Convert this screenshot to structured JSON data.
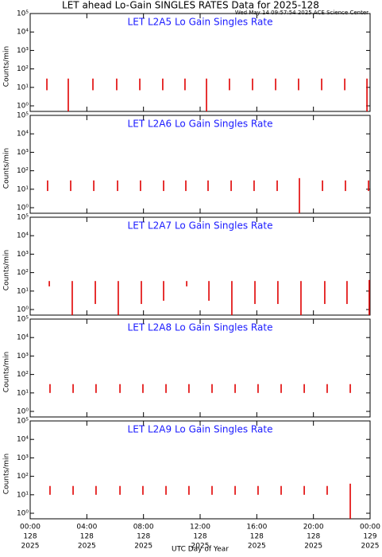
{
  "title": "LET ahead Lo-Gain SINGLES RATES Data for 2025-128",
  "timestamp": "Wed May 14 09:57:54 2025 ACE Science Center",
  "xlabel": "UTC Day of Year",
  "chart_data": [
    {
      "type": "spikes",
      "title": "LET L2A5 Lo Gain Singles Rate",
      "ylabel": "Counts/min",
      "color": "#e00000",
      "log_y": true,
      "xlim": [
        0,
        24
      ],
      "xticks": [
        0,
        4,
        8,
        12,
        16,
        20,
        24
      ],
      "ylim": [
        0.5,
        100000
      ],
      "yticks": [
        {
          "value": 1,
          "label": "10⁰"
        },
        {
          "value": 10,
          "label": "10¹"
        },
        {
          "value": 100,
          "label": "10²"
        },
        {
          "value": 1000,
          "label": "10³"
        },
        {
          "value": 10000,
          "label": "10⁴"
        },
        {
          "value": 100000,
          "label": "10⁵"
        }
      ],
      "x": [
        1.18,
        2.69,
        4.43,
        6.11,
        7.74,
        9.36,
        10.93,
        12.45,
        14.07,
        15.7,
        17.33,
        18.95,
        20.58,
        22.21,
        23.78
      ],
      "high": [
        30,
        30,
        30,
        30,
        30,
        30,
        30,
        30,
        30,
        30,
        30,
        30,
        30,
        30,
        30
      ],
      "low": [
        7,
        0.5,
        7,
        7,
        7,
        7,
        7,
        0.5,
        7,
        7,
        7,
        7,
        7,
        7,
        0.5
      ]
    },
    {
      "type": "spikes",
      "title": "LET L2A6 Lo Gain Singles Rate",
      "ylabel": "Counts/min",
      "color": "#e00000",
      "log_y": true,
      "xlim": [
        0,
        24
      ],
      "xticks": [
        0,
        4,
        8,
        12,
        16,
        20,
        24
      ],
      "ylim": [
        0.5,
        100000
      ],
      "yticks": [
        {
          "value": 1,
          "label": "10⁰"
        },
        {
          "value": 10,
          "label": "10¹"
        },
        {
          "value": 100,
          "label": "10²"
        },
        {
          "value": 1000,
          "label": "10³"
        },
        {
          "value": 10000,
          "label": "10⁴"
        },
        {
          "value": 100000,
          "label": "10⁵"
        }
      ],
      "x": [
        1.23,
        2.86,
        4.49,
        6.17,
        7.79,
        9.42,
        10.99,
        12.56,
        14.19,
        15.81,
        17.44,
        19.01,
        20.64,
        22.26,
        23.89
      ],
      "high": [
        30,
        30,
        30,
        30,
        30,
        30,
        30,
        30,
        30,
        30,
        30,
        40,
        30,
        30,
        30
      ],
      "low": [
        8,
        8,
        8,
        8,
        8,
        8,
        8,
        8,
        8,
        8,
        8,
        0.5,
        8,
        8,
        8
      ]
    },
    {
      "type": "spikes",
      "title": "LET L2A7 Lo Gain Singles Rate",
      "ylabel": "Counts/min",
      "color": "#e00000",
      "log_y": true,
      "xlim": [
        0,
        24
      ],
      "xticks": [
        0,
        4,
        8,
        12,
        16,
        20,
        24
      ],
      "ylim": [
        0.5,
        100000
      ],
      "yticks": [
        {
          "value": 1,
          "label": "10⁰"
        },
        {
          "value": 10,
          "label": "10¹"
        },
        {
          "value": 100,
          "label": "10²"
        },
        {
          "value": 1000,
          "label": "10³"
        },
        {
          "value": 10000,
          "label": "10⁴"
        },
        {
          "value": 100000,
          "label": "10⁵"
        }
      ],
      "x": [
        1.35,
        2.97,
        4.6,
        6.22,
        7.85,
        9.42,
        11.05,
        12.62,
        14.24,
        15.87,
        17.49,
        19.12,
        20.8,
        22.37,
        23.94
      ],
      "high": [
        35,
        35,
        35,
        35,
        35,
        35,
        35,
        35,
        35,
        35,
        35,
        35,
        35,
        35,
        40
      ],
      "low": [
        18,
        0.5,
        2,
        0.5,
        2,
        3,
        18,
        3,
        0.5,
        2,
        2,
        0.5,
        2,
        2,
        0.5
      ]
    },
    {
      "type": "spikes",
      "title": "LET L2A8 Lo Gain Singles Rate",
      "ylabel": "Counts/min",
      "color": "#e00000",
      "log_y": true,
      "xlim": [
        0,
        24
      ],
      "xticks": [
        0,
        4,
        8,
        12,
        16,
        20,
        24
      ],
      "ylim": [
        0.5,
        100000
      ],
      "yticks": [
        {
          "value": 1,
          "label": "10⁰"
        },
        {
          "value": 10,
          "label": "10¹"
        },
        {
          "value": 100,
          "label": "10²"
        },
        {
          "value": 1000,
          "label": "10³"
        },
        {
          "value": 10000,
          "label": "10⁴"
        },
        {
          "value": 100000,
          "label": "10⁵"
        }
      ],
      "x": [
        1.4,
        3.03,
        4.65,
        6.34,
        7.96,
        9.59,
        11.21,
        12.84,
        14.47,
        16.09,
        17.72,
        19.35,
        20.97,
        22.6
      ],
      "high": [
        30,
        30,
        30,
        30,
        30,
        30,
        30,
        30,
        30,
        30,
        30,
        30,
        30,
        30
      ],
      "low": [
        10,
        10,
        10,
        10,
        10,
        10,
        10,
        10,
        10,
        10,
        10,
        10,
        10,
        10
      ]
    },
    {
      "type": "spikes",
      "title": "LET L2A9 Lo Gain Singles Rate",
      "ylabel": "Counts/min",
      "color": "#e00000",
      "log_y": true,
      "xlim": [
        0,
        24
      ],
      "xticks": [
        {
          "value": 0,
          "label": "00:00"
        },
        {
          "value": 4,
          "label": "04:00"
        },
        {
          "value": 8,
          "label": "08:00"
        },
        {
          "value": 12,
          "label": "12:00"
        },
        {
          "value": 16,
          "label": "16:00"
        },
        {
          "value": 20,
          "label": "20:00"
        },
        {
          "value": 24,
          "label": "00:00"
        }
      ],
      "xtick_days": [
        "128",
        "128",
        "128",
        "128",
        "128",
        "128",
        "129"
      ],
      "xtick_years": [
        "2025",
        "2025",
        "2025",
        "2025",
        "2025",
        "2025",
        "2025"
      ],
      "ylim": [
        0.5,
        100000
      ],
      "yticks": [
        {
          "value": 1,
          "label": "10⁰"
        },
        {
          "value": 10,
          "label": "10¹"
        },
        {
          "value": 100,
          "label": "10²"
        },
        {
          "value": 1000,
          "label": "10³"
        },
        {
          "value": 10000,
          "label": "10⁴"
        },
        {
          "value": 100000,
          "label": "10⁵"
        }
      ],
      "x": [
        1.4,
        3.03,
        4.65,
        6.34,
        7.96,
        9.59,
        11.21,
        12.84,
        14.47,
        16.09,
        17.72,
        19.35,
        20.97,
        22.6
      ],
      "high": [
        30,
        30,
        30,
        30,
        30,
        30,
        30,
        30,
        30,
        30,
        30,
        30,
        30,
        40
      ],
      "low": [
        10,
        10,
        10,
        10,
        10,
        10,
        10,
        10,
        10,
        10,
        10,
        10,
        10,
        0.5
      ]
    }
  ]
}
